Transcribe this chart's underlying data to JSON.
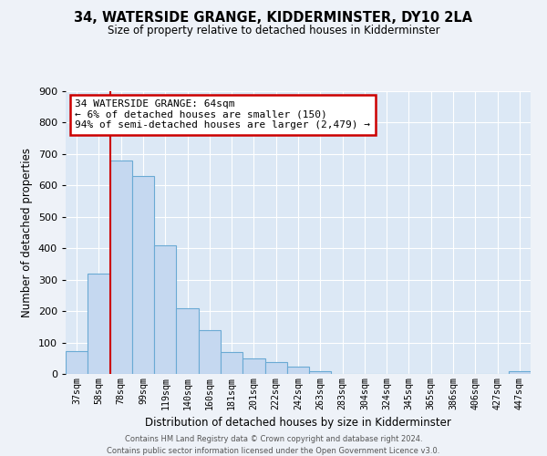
{
  "title": "34, WATERSIDE GRANGE, KIDDERMINSTER, DY10 2LA",
  "subtitle": "Size of property relative to detached houses in Kidderminster",
  "xlabel": "Distribution of detached houses by size in Kidderminster",
  "ylabel": "Number of detached properties",
  "bar_labels": [
    "37sqm",
    "58sqm",
    "78sqm",
    "99sqm",
    "119sqm",
    "140sqm",
    "160sqm",
    "181sqm",
    "201sqm",
    "222sqm",
    "242sqm",
    "263sqm",
    "283sqm",
    "304sqm",
    "324sqm",
    "345sqm",
    "365sqm",
    "386sqm",
    "406sqm",
    "427sqm",
    "447sqm"
  ],
  "bar_values": [
    72,
    320,
    680,
    630,
    410,
    210,
    140,
    70,
    50,
    37,
    22,
    10,
    0,
    0,
    0,
    0,
    0,
    0,
    0,
    0,
    8
  ],
  "bar_color": "#c5d8f0",
  "bar_edge_color": "#6aaad4",
  "ylim": [
    0,
    900
  ],
  "yticks": [
    0,
    100,
    200,
    300,
    400,
    500,
    600,
    700,
    800,
    900
  ],
  "vline_color": "#cc0000",
  "annotation_title": "34 WATERSIDE GRANGE: 64sqm",
  "annotation_line1": "← 6% of detached houses are smaller (150)",
  "annotation_line2": "94% of semi-detached houses are larger (2,479) →",
  "annotation_box_color": "#cc0000",
  "footnote1": "Contains HM Land Registry data © Crown copyright and database right 2024.",
  "footnote2": "Contains public sector information licensed under the Open Government Licence v3.0.",
  "bg_color": "#eef2f8",
  "plot_bg_color": "#dce8f5"
}
